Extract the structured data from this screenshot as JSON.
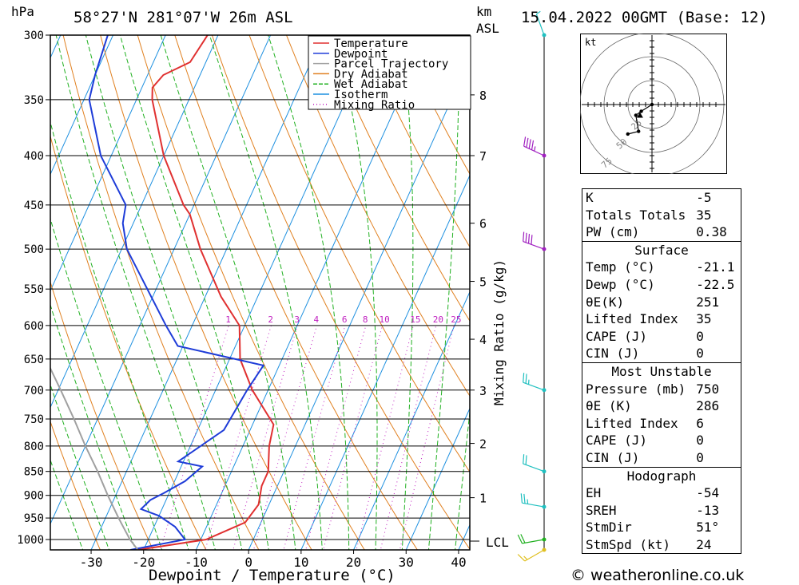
{
  "header": {
    "hpa_label": "hPa",
    "location": "58°27'N  281°07'W  26m  ASL",
    "km_label": "km",
    "asl_label": "ASL",
    "datetime": "15.04.2022  00GMT  (Base: 12)"
  },
  "axes": {
    "xlabel": "Dewpoint / Temperature (°C)",
    "mixing_label": "Mixing Ratio (g/kg)",
    "lcl_label": "LCL"
  },
  "chart_data": {
    "type": "line",
    "title": "Skew-T log-P sounding",
    "pressure_levels": [
      300,
      350,
      400,
      450,
      500,
      550,
      600,
      650,
      700,
      750,
      800,
      850,
      900,
      950,
      1000
    ],
    "temperature_ticks": [
      -30,
      -20,
      -10,
      0,
      10,
      20,
      30,
      40
    ],
    "height_km_ticks": [
      {
        "label": "8",
        "p": 346
      },
      {
        "label": "7",
        "p": 400
      },
      {
        "label": "6",
        "p": 470
      },
      {
        "label": "5",
        "p": 540
      },
      {
        "label": "4",
        "p": 620
      },
      {
        "label": "3",
        "p": 700
      },
      {
        "label": "2",
        "p": 795
      },
      {
        "label": "1",
        "p": 905
      }
    ],
    "mixing_ratio_labels": [
      "1",
      "2",
      "3",
      "4",
      "6",
      "8",
      "10",
      "15",
      "20",
      "25"
    ],
    "mixing_ratio_values": [
      1,
      2,
      3,
      4,
      6,
      8,
      10,
      15,
      20,
      25
    ],
    "series": [
      {
        "name": "Temperature",
        "color": "#e03030",
        "points": [
          [
            1025,
            -21.1
          ],
          [
            1000,
            -9
          ],
          [
            960,
            -3
          ],
          [
            920,
            -2
          ],
          [
            880,
            -3
          ],
          [
            850,
            -3
          ],
          [
            800,
            -5
          ],
          [
            760,
            -6
          ],
          [
            700,
            -13
          ],
          [
            650,
            -18
          ],
          [
            600,
            -21
          ],
          [
            560,
            -27
          ],
          [
            500,
            -35
          ],
          [
            460,
            -40
          ],
          [
            450,
            -42
          ],
          [
            400,
            -50
          ],
          [
            350,
            -57
          ],
          [
            340,
            -58
          ],
          [
            330,
            -57
          ],
          [
            320,
            -53
          ],
          [
            300,
            -52
          ]
        ]
      },
      {
        "name": "Dewpoint",
        "color": "#1e3cd8",
        "points": [
          [
            1025,
            -22.5
          ],
          [
            1000,
            -13
          ],
          [
            970,
            -16
          ],
          [
            945,
            -20
          ],
          [
            930,
            -24
          ],
          [
            910,
            -23
          ],
          [
            895,
            -21
          ],
          [
            870,
            -18
          ],
          [
            840,
            -16
          ],
          [
            830,
            -21
          ],
          [
            770,
            -15
          ],
          [
            700,
            -14
          ],
          [
            660,
            -13
          ],
          [
            630,
            -31
          ],
          [
            600,
            -35
          ],
          [
            500,
            -49
          ],
          [
            470,
            -52
          ],
          [
            450,
            -53
          ],
          [
            400,
            -62
          ],
          [
            350,
            -69
          ],
          [
            330,
            -70
          ],
          [
            300,
            -71
          ]
        ]
      },
      {
        "name": "Parcel Trajectory",
        "color": "#a0a0a0",
        "points": [
          [
            1025,
            -21.1
          ],
          [
            1000,
            -23.5
          ],
          [
            950,
            -27.5
          ],
          [
            900,
            -31.5
          ],
          [
            850,
            -35.5
          ],
          [
            800,
            -40
          ],
          [
            750,
            -44.5
          ],
          [
            700,
            -49.5
          ],
          [
            650,
            -55
          ],
          [
            600,
            -61
          ]
        ]
      }
    ],
    "legend": [
      "Temperature",
      "Dewpoint",
      "Parcel Trajectory",
      "Dry Adiabat",
      "Wet Adiabat",
      "Isotherm",
      "Mixing Ratio"
    ],
    "legend_colors": [
      "#e03030",
      "#1e3cd8",
      "#a0a0a0",
      "#e08020",
      "#20b020",
      "#1e90e0",
      "#c020c0"
    ],
    "wind_barbs": [
      {
        "p": 300,
        "color": "#20c0c0",
        "dir_deg": 340,
        "speed_kt": 5
      },
      {
        "p": 400,
        "color": "#a020c0",
        "dir_deg": 295,
        "speed_kt": 45
      },
      {
        "p": 500,
        "color": "#a020c0",
        "dir_deg": 290,
        "speed_kt": 40
      },
      {
        "p": 700,
        "color": "#20c0c0",
        "dir_deg": 290,
        "speed_kt": 25
      },
      {
        "p": 850,
        "color": "#20c0c0",
        "dir_deg": 290,
        "speed_kt": 20
      },
      {
        "p": 925,
        "color": "#20c0c0",
        "dir_deg": 280,
        "speed_kt": 25
      },
      {
        "p": 1000,
        "color": "#20b020",
        "dir_deg": 260,
        "speed_kt": 20
      },
      {
        "p": 1025,
        "color": "#e0c020",
        "dir_deg": 240,
        "speed_kt": 15
      }
    ]
  },
  "hodograph": {
    "unit_label": "kt",
    "ring_labels": [
      "25",
      "50",
      "75"
    ],
    "trace_kt": [
      [
        0,
        0
      ],
      [
        -8,
        -5
      ],
      [
        -12,
        -8
      ],
      [
        -10,
        -20
      ],
      [
        -18,
        -22
      ]
    ],
    "storm_kt": [
      -9,
      -8
    ]
  },
  "indices": {
    "k_label": "K",
    "k_value": "-5",
    "tt_label": "Totals Totals",
    "tt_value": "35",
    "pw_label": "PW (cm)",
    "pw_value": "0.38"
  },
  "surface": {
    "title": "Surface",
    "temp_label": "Temp (°C)",
    "temp_value": "-21.1",
    "dewp_label": "Dewp (°C)",
    "dewp_value": "-22.5",
    "theta_label": "θE(K)",
    "theta_value": "251",
    "li_label": "Lifted Index",
    "li_value": "35",
    "cape_label": "CAPE (J)",
    "cape_value": "0",
    "cin_label": "CIN (J)",
    "cin_value": "0"
  },
  "most_unstable": {
    "title": "Most Unstable",
    "pres_label": "Pressure (mb)",
    "pres_value": "750",
    "theta_label": "θE (K)",
    "theta_value": "286",
    "li_label": "Lifted Index",
    "li_value": "6",
    "cape_label": "CAPE (J)",
    "cape_value": "0",
    "cin_label": "CIN (J)",
    "cin_value": "0"
  },
  "hodo_params": {
    "title": "Hodograph",
    "eh_label": "EH",
    "eh_value": "-54",
    "sreh_label": "SREH",
    "sreh_value": "-13",
    "stmdir_label": "StmDir",
    "stmdir_value": "51°",
    "stmspd_label": "StmSpd (kt)",
    "stmspd_value": "24"
  },
  "footer": {
    "copyright": "© weatheronline.co.uk"
  }
}
